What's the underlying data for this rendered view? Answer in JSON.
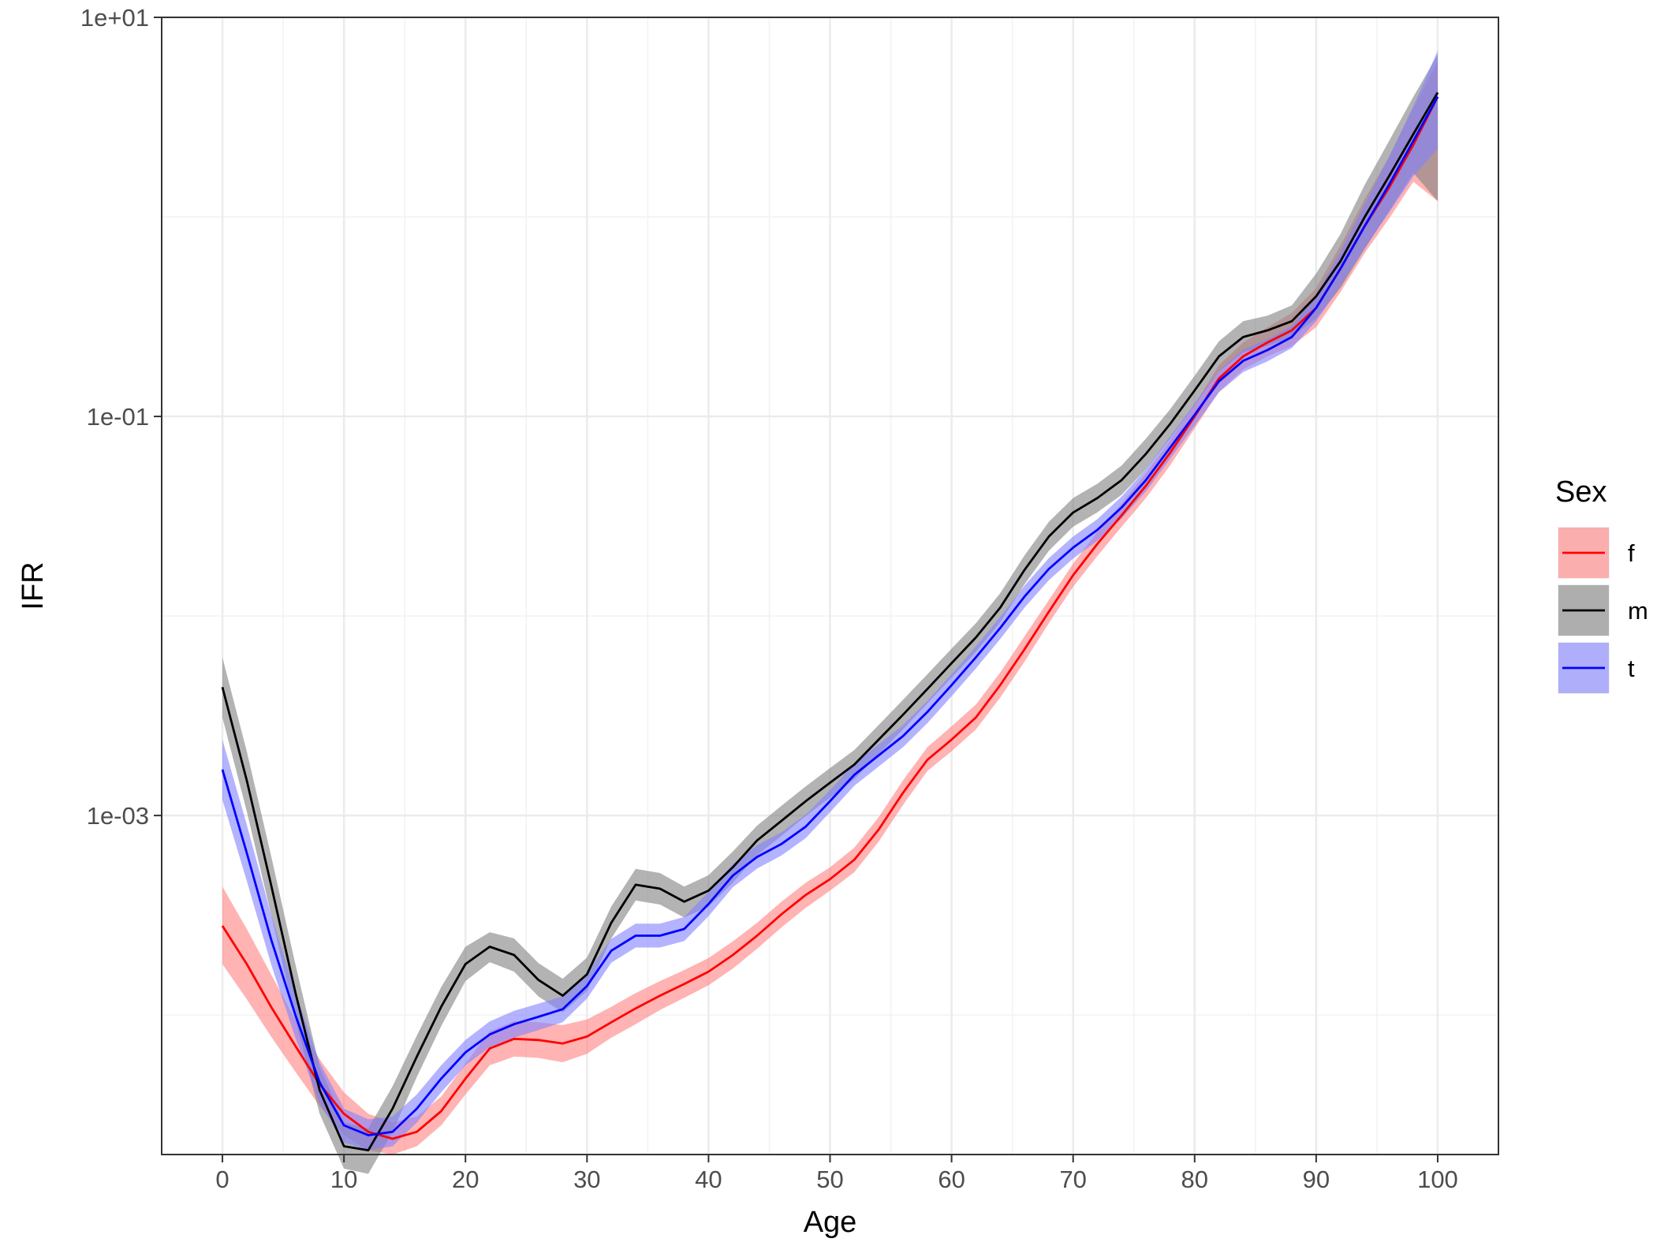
{
  "chart_data": {
    "type": "line",
    "title": "",
    "xlabel": "Age",
    "ylabel": "IFR",
    "x_scale": "linear",
    "y_scale": "log10",
    "xlim": [
      -5,
      105
    ],
    "ylim": [
      2e-05,
      10
    ],
    "x_ticks": [
      0,
      10,
      20,
      30,
      40,
      50,
      60,
      70,
      80,
      90,
      100
    ],
    "y_ticks": [
      0.001,
      0.1,
      10
    ],
    "y_tick_labels": [
      "1e-03",
      "1e-01",
      "1e+01"
    ],
    "grid": true,
    "legend": {
      "title": "Sex",
      "position": "right"
    },
    "x": [
      0,
      2,
      4,
      6,
      8,
      10,
      12,
      14,
      16,
      18,
      20,
      22,
      24,
      26,
      28,
      30,
      32,
      34,
      36,
      38,
      40,
      42,
      44,
      46,
      48,
      50,
      52,
      54,
      56,
      58,
      60,
      62,
      64,
      66,
      68,
      70,
      72,
      74,
      76,
      78,
      80,
      82,
      84,
      86,
      88,
      90,
      92,
      94,
      96,
      98,
      100
    ],
    "series": [
      {
        "name": "f",
        "color": "#ff0000",
        "ribbon_color": "#ff8080",
        "values": [
          0.00028,
          0.00018,
          0.00011,
          7e-05,
          4.5e-05,
          3.2e-05,
          2.6e-05,
          2.4e-05,
          2.6e-05,
          3.3e-05,
          4.8e-05,
          6.8e-05,
          7.6e-05,
          7.5e-05,
          7.2e-05,
          7.8e-05,
          9.2e-05,
          0.000108,
          0.000125,
          0.000143,
          0.000165,
          0.0002,
          0.00025,
          0.00032,
          0.0004,
          0.00048,
          0.0006,
          0.00085,
          0.0013,
          0.0019,
          0.0024,
          0.0031,
          0.0045,
          0.0068,
          0.0105,
          0.016,
          0.023,
          0.032,
          0.045,
          0.066,
          0.1,
          0.155,
          0.2,
          0.235,
          0.27,
          0.35,
          0.55,
          0.9,
          1.4,
          2.3,
          4.0
        ],
        "lower": [
          0.00018,
          0.00012,
          7.8e-05,
          5.2e-05,
          3.5e-05,
          2.5e-05,
          2.1e-05,
          2e-05,
          2.2e-05,
          2.8e-05,
          4e-05,
          5.6e-05,
          6.2e-05,
          6.1e-05,
          5.8e-05,
          6.4e-05,
          7.7e-05,
          9e-05,
          0.000106,
          0.000122,
          0.000141,
          0.000171,
          0.000215,
          0.000275,
          0.000345,
          0.00042,
          0.00052,
          0.00074,
          0.00113,
          0.00167,
          0.0021,
          0.0027,
          0.0039,
          0.0059,
          0.0092,
          0.014,
          0.02,
          0.028,
          0.039,
          0.057,
          0.087,
          0.133,
          0.172,
          0.2,
          0.225,
          0.28,
          0.42,
          0.66,
          0.98,
          1.5,
          1.2
        ],
        "upper": [
          0.00044,
          0.00027,
          0.00016,
          9.5e-05,
          6e-05,
          4.1e-05,
          3.2e-05,
          2.9e-05,
          3.1e-05,
          3.9e-05,
          5.7e-05,
          8.3e-05,
          9.3e-05,
          9.2e-05,
          8.9e-05,
          9.5e-05,
          0.00011,
          0.000129,
          0.000148,
          0.000168,
          0.000193,
          0.000234,
          0.00029,
          0.00037,
          0.00046,
          0.00055,
          0.00069,
          0.00098,
          0.0015,
          0.0022,
          0.0028,
          0.0036,
          0.0052,
          0.0079,
          0.012,
          0.0183,
          0.0264,
          0.0366,
          0.052,
          0.076,
          0.115,
          0.181,
          0.235,
          0.28,
          0.33,
          0.44,
          0.72,
          1.23,
          2.0,
          3.5,
          6.0
        ]
      },
      {
        "name": "m",
        "color": "#000000",
        "ribbon_color": "#808080",
        "values": [
          0.0044,
          0.0015,
          0.00045,
          0.00013,
          4.2e-05,
          2.2e-05,
          2.1e-05,
          3.4e-05,
          6.2e-05,
          0.00011,
          0.00018,
          0.00022,
          0.0002,
          0.00015,
          0.000125,
          0.00016,
          0.00029,
          0.00045,
          0.00043,
          0.00037,
          0.00042,
          0.00055,
          0.00075,
          0.00094,
          0.00118,
          0.00146,
          0.0018,
          0.0024,
          0.0032,
          0.0043,
          0.0058,
          0.0078,
          0.011,
          0.017,
          0.025,
          0.033,
          0.039,
          0.048,
          0.065,
          0.092,
          0.135,
          0.2,
          0.25,
          0.27,
          0.3,
          0.4,
          0.6,
          1.0,
          1.6,
          2.6,
          4.2
        ],
        "lower": [
          0.0031,
          0.00105,
          0.00032,
          9.5e-05,
          3.2e-05,
          1.7e-05,
          1.6e-05,
          2.6e-05,
          4.9e-05,
          8.8e-05,
          0.000148,
          0.000184,
          0.000165,
          0.000124,
          0.000103,
          0.000132,
          0.000242,
          0.000375,
          0.000358,
          0.000308,
          0.00035,
          0.00046,
          0.000632,
          0.00079,
          0.000995,
          0.00123,
          0.00152,
          0.00203,
          0.0027,
          0.00364,
          0.00491,
          0.0066,
          0.0093,
          0.0144,
          0.0212,
          0.028,
          0.0331,
          0.0405,
          0.0545,
          0.0775,
          0.114,
          0.168,
          0.21,
          0.226,
          0.25,
          0.31,
          0.44,
          0.69,
          1.07,
          1.66,
          1.2
        ],
        "upper": [
          0.0062,
          0.0021,
          0.00063,
          0.00018,
          5.5e-05,
          2.9e-05,
          2.7e-05,
          4.4e-05,
          7.9e-05,
          0.000138,
          0.00022,
          0.00026,
          0.000242,
          0.000182,
          0.000152,
          0.000194,
          0.00035,
          0.00054,
          0.000515,
          0.00044,
          0.000502,
          0.00066,
          0.00089,
          0.00112,
          0.0014,
          0.00173,
          0.00213,
          0.00284,
          0.0038,
          0.0051,
          0.00686,
          0.0092,
          0.013,
          0.0201,
          0.0296,
          0.039,
          0.046,
          0.0568,
          0.0775,
          0.109,
          0.16,
          0.238,
          0.3,
          0.32,
          0.36,
          0.52,
          0.82,
          1.45,
          2.4,
          4.0,
          6.5
        ]
      },
      {
        "name": "t",
        "color": "#0000ff",
        "ribbon_color": "#8080ff",
        "values": [
          0.0017,
          0.00065,
          0.00024,
          0.0001,
          4.6e-05,
          2.8e-05,
          2.5e-05,
          2.6e-05,
          3.4e-05,
          4.8e-05,
          6.5e-05,
          8e-05,
          9e-05,
          9.8e-05,
          0.000107,
          0.00014,
          0.00021,
          0.00025,
          0.00025,
          0.00027,
          0.00036,
          0.0005,
          0.00062,
          0.00072,
          0.00088,
          0.00118,
          0.0016,
          0.002,
          0.0025,
          0.0033,
          0.0045,
          0.0062,
          0.0087,
          0.0125,
          0.0172,
          0.022,
          0.027,
          0.035,
          0.048,
          0.07,
          0.102,
          0.15,
          0.19,
          0.215,
          0.25,
          0.35,
          0.55,
          0.9,
          1.45,
          2.4,
          4.0
        ],
        "lower": [
          0.0012,
          0.00047,
          0.00018,
          7.7e-05,
          3.6e-05,
          2.3e-05,
          2.1e-05,
          2.2e-05,
          2.9e-05,
          4.1e-05,
          5.6e-05,
          6.9e-05,
          7.7e-05,
          8.4e-05,
          9.2e-05,
          0.000121,
          0.000183,
          0.000218,
          0.000218,
          0.000235,
          0.000313,
          0.000437,
          0.000542,
          0.000631,
          0.00077,
          0.00104,
          0.00141,
          0.00176,
          0.0022,
          0.0029,
          0.00396,
          0.00546,
          0.00766,
          0.011,
          0.0151,
          0.0194,
          0.0238,
          0.0308,
          0.0422,
          0.0616,
          0.0898,
          0.132,
          0.167,
          0.189,
          0.22,
          0.3,
          0.45,
          0.7,
          1.05,
          1.6,
          2.2
        ],
        "upper": [
          0.0024,
          0.0009,
          0.00032,
          0.00013,
          5.8e-05,
          3.4e-05,
          3e-05,
          3.1e-05,
          4e-05,
          5.6e-05,
          7.5e-05,
          9.3e-05,
          0.000105,
          0.000114,
          0.000124,
          0.000162,
          0.000241,
          0.000287,
          0.000287,
          0.00031,
          0.000414,
          0.000572,
          0.000709,
          0.000824,
          0.00101,
          0.00134,
          0.00182,
          0.00227,
          0.00284,
          0.00375,
          0.00511,
          0.00704,
          0.00988,
          0.0142,
          0.0195,
          0.025,
          0.0306,
          0.0397,
          0.0545,
          0.0795,
          0.116,
          0.17,
          0.216,
          0.244,
          0.284,
          0.41,
          0.67,
          1.16,
          2.0,
          3.6,
          6.8
        ]
      }
    ]
  }
}
